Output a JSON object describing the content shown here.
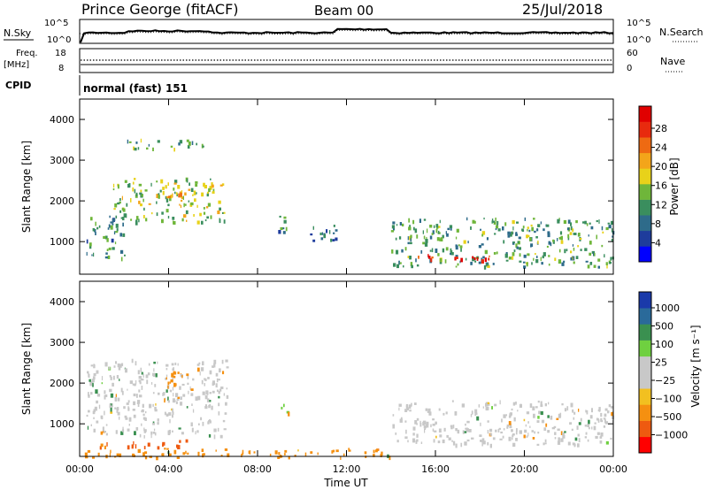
{
  "header": {
    "station": "Prince George (fitACF)",
    "beam": "Beam 00",
    "date": "25/Jul/2018"
  },
  "top_panels": {
    "nsky_label": "N.Sky",
    "nsearch_label": "N.Search",
    "noise_ticks": [
      "10^5",
      "10^0"
    ],
    "freq_label_line1": "Freq.",
    "freq_label_line2": "[MHz]",
    "freq_ticks": [
      "18",
      "8"
    ],
    "nave_label": "Nave",
    "nave_ticks": [
      "60",
      "0"
    ],
    "cpid_label": "CPID",
    "cpid_value": "normal (fast) 151"
  },
  "colorbars": {
    "power": {
      "label": "Power [dB]",
      "ticks": [
        "28",
        "24",
        "20",
        "16",
        "12",
        "8",
        "4"
      ],
      "colors": [
        "#0000ff",
        "#1e3c9c",
        "#2e6b8a",
        "#3a8e5e",
        "#6fb63a",
        "#e8d21a",
        "#f3a51a",
        "#ee6a12",
        "#e82a0e",
        "#e00000"
      ]
    },
    "velocity": {
      "label": "Velocity [m s⁻¹]",
      "ticks": [
        "1000",
        "500",
        "100",
        "25",
        "−25",
        "−100",
        "−500",
        "−1000"
      ],
      "colors": [
        "#ff0000",
        "#ee5a10",
        "#f59010",
        "#f2c020",
        "#c8c8c8",
        "#c8c8c8",
        "#6fd040",
        "#3a9050",
        "#2a6a9a",
        "#1a3aaa"
      ]
    }
  },
  "axes": {
    "ylabel": "Slant Range [km]",
    "xlabel": "Time UT",
    "yticks": [
      "4000",
      "3000",
      "2000",
      "1000"
    ],
    "xticks": [
      "00:00",
      "04:00",
      "08:00",
      "12:00",
      "16:00",
      "20:00",
      "00:00"
    ]
  },
  "chart_data": [
    {
      "type": "heatmap",
      "name": "Power",
      "x_unit": "hours UT",
      "xlim": [
        0,
        24
      ],
      "ylim": [
        200,
        4500
      ],
      "clim": [
        0,
        30
      ],
      "features": [
        {
          "t0": 0.3,
          "t1": 2.0,
          "r0": 600,
          "r1": 1700,
          "level": 10
        },
        {
          "t0": 1.5,
          "t1": 6.5,
          "r0": 1500,
          "r1": 2600,
          "level": 14
        },
        {
          "t0": 3.8,
          "t1": 4.8,
          "r0": 1900,
          "r1": 2300,
          "level": 20
        },
        {
          "t0": 8.9,
          "t1": 9.4,
          "r0": 1050,
          "r1": 1650,
          "level": 10
        },
        {
          "t0": 10.2,
          "t1": 11.5,
          "r0": 1000,
          "r1": 1500,
          "level": 6
        },
        {
          "t0": 14.0,
          "t1": 24.0,
          "r0": 400,
          "r1": 1600,
          "level": 11
        },
        {
          "t0": 15.0,
          "t1": 19.0,
          "r0": 550,
          "r1": 700,
          "level": 28
        },
        {
          "t0": 2.0,
          "t1": 5.6,
          "r0": 3300,
          "r1": 3550,
          "level": 12
        }
      ]
    },
    {
      "type": "heatmap",
      "name": "Velocity",
      "x_unit": "hours UT",
      "xlim": [
        0,
        24
      ],
      "ylim": [
        200,
        4500
      ],
      "clim": [
        -1000,
        1000
      ],
      "features": [
        {
          "t0": 0.3,
          "t1": 6.6,
          "r0": 700,
          "r1": 2600,
          "level": 0
        },
        {
          "t0": 0.8,
          "t1": 5.2,
          "r0": 450,
          "r1": 620,
          "level": -500
        },
        {
          "t0": 3.8,
          "t1": 4.8,
          "r0": 1800,
          "r1": 2300,
          "level": -100
        },
        {
          "t0": 9.0,
          "t1": 9.4,
          "r0": 1150,
          "r1": 1500,
          "level": 100
        },
        {
          "t0": 14.0,
          "t1": 24.0,
          "r0": 500,
          "r1": 1600,
          "level": 0
        },
        {
          "t0": 0.0,
          "t1": 14.0,
          "r0": 200,
          "r1": 420,
          "level": -100
        }
      ]
    }
  ]
}
